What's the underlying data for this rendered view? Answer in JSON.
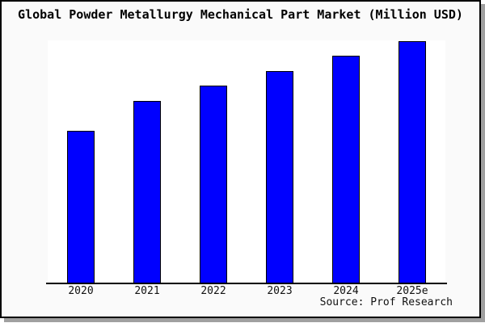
{
  "chart_data": {
    "type": "bar",
    "title": "Global Powder Metallurgy Mechanical Part Market (Million USD)",
    "categories": [
      "2020",
      "2021",
      "2022",
      "2023",
      "2024",
      "2025e"
    ],
    "values": [
      63,
      75.3,
      81.7,
      87.7,
      94,
      100
    ],
    "values_note": "No y-axis tick labels are shown in the image; values are bar heights normalized so 2025e = 100.",
    "xlabel": "",
    "ylabel": "",
    "ylim": [
      0,
      105
    ],
    "grid": false,
    "legend": false,
    "bar_color": "#0000ff",
    "bar_border_color": "#000000",
    "source": "Source: Prof Research"
  },
  "colors": {
    "card_background": "#fafafa",
    "plot_background": "#ffffff",
    "frame_border": "#000000",
    "drop_shadow": "#a0a0a0",
    "axis_line": "#000000",
    "text": "#000000"
  }
}
